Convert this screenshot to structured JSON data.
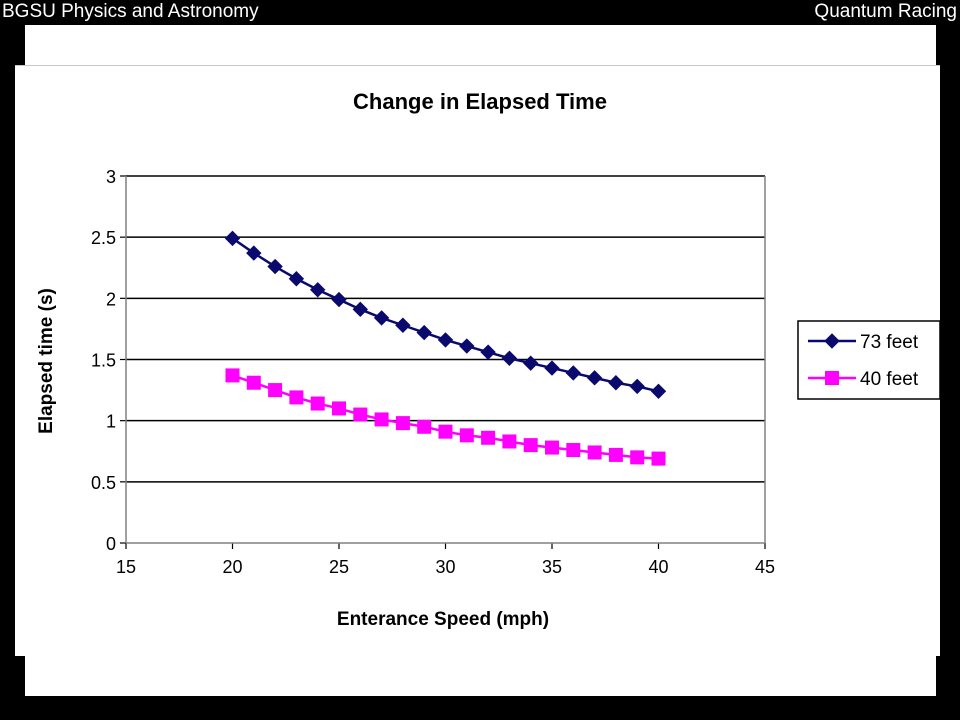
{
  "slide": {
    "header_left": "BGSU Physics and Astronomy",
    "header_right": "Quantum Racing"
  },
  "colors": {
    "background": "#000000",
    "panel": "#ffffff",
    "series_73": "#0a0a6e",
    "series_40": "#ff00ff",
    "gridline": "#000000"
  },
  "chart_data": {
    "type": "line",
    "title": "Change in Elapsed Time",
    "xlabel": "Enterance Speed (mph)",
    "ylabel": "Elapsed time (s)",
    "xlim": [
      15,
      45
    ],
    "ylim": [
      0,
      3
    ],
    "xticks": [
      "15",
      "20",
      "25",
      "30",
      "35",
      "40",
      "45"
    ],
    "yticks": [
      "0",
      "0.5",
      "1",
      "1.5",
      "2",
      "2.5",
      "3"
    ],
    "grid": "horizontal",
    "legend_position": "right",
    "x": [
      20,
      21,
      22,
      23,
      24,
      25,
      26,
      27,
      28,
      29,
      30,
      31,
      32,
      33,
      34,
      35,
      36,
      37,
      38,
      39,
      40
    ],
    "series": [
      {
        "name": "73 feet",
        "marker": "diamond",
        "values": [
          2.49,
          2.37,
          2.26,
          2.16,
          2.07,
          1.99,
          1.91,
          1.84,
          1.78,
          1.72,
          1.66,
          1.61,
          1.56,
          1.51,
          1.47,
          1.43,
          1.39,
          1.35,
          1.31,
          1.28,
          1.24
        ]
      },
      {
        "name": "40 feet",
        "marker": "square",
        "values": [
          1.37,
          1.31,
          1.25,
          1.19,
          1.14,
          1.1,
          1.05,
          1.01,
          0.98,
          0.95,
          0.91,
          0.88,
          0.86,
          0.83,
          0.8,
          0.78,
          0.76,
          0.74,
          0.72,
          0.7,
          0.69
        ]
      }
    ]
  }
}
